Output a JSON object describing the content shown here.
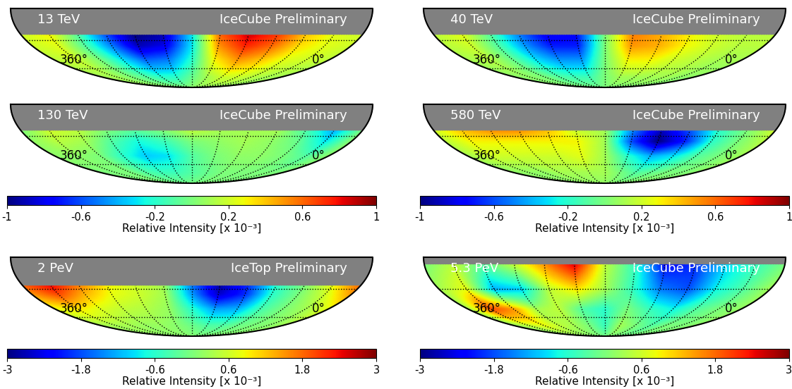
{
  "chart_data": [
    {
      "type": "heatmap",
      "title": "13 TeV",
      "subtitle": "IceCube Preliminary",
      "xlim": [
        360,
        0
      ],
      "ylim": [
        -90,
        0
      ],
      "xticks": [
        {
          "value": 360,
          "label": "360°"
        },
        {
          "value": 0,
          "label": "0°"
        }
      ],
      "meridians": [
        30,
        60,
        90,
        120,
        150,
        180,
        210,
        240,
        270,
        300,
        330
      ],
      "parallels": [
        -30,
        -60
      ],
      "ra": [
        0,
        30,
        60,
        90,
        120,
        150,
        180,
        210,
        240,
        270,
        300,
        330,
        360
      ],
      "dec": [
        -90,
        -70,
        -50,
        -35,
        -25
      ],
      "values": [
        [
          0.05,
          0.05,
          0.05,
          0.05,
          0.05,
          0.05,
          0.05,
          0.05,
          0.05,
          0.05,
          0.05,
          0.05,
          0.05
        ],
        [
          0.1,
          0.1,
          0.15,
          0.2,
          0.2,
          0.1,
          -0.05,
          -0.2,
          -0.2,
          -0.1,
          0.0,
          0.1,
          0.1
        ],
        [
          0.15,
          0.2,
          0.25,
          0.4,
          0.5,
          0.3,
          -0.2,
          -0.5,
          -0.55,
          -0.3,
          0.0,
          0.2,
          0.15
        ],
        [
          0.2,
          0.25,
          0.35,
          0.6,
          0.75,
          0.5,
          -0.3,
          -0.8,
          -0.9,
          -0.5,
          -0.1,
          0.25,
          0.2
        ],
        [
          0.2,
          0.25,
          0.4,
          0.7,
          0.85,
          0.6,
          -0.3,
          -0.9,
          -1.0,
          -0.6,
          -0.1,
          0.3,
          0.2
        ]
      ],
      "zlim": [
        -1,
        1
      ]
    },
    {
      "type": "heatmap",
      "title": "40 TeV",
      "subtitle": "IceCube Preliminary",
      "xlim": [
        360,
        0
      ],
      "ylim": [
        -90,
        0
      ],
      "xticks": [
        {
          "value": 360,
          "label": "360°"
        },
        {
          "value": 0,
          "label": "0°"
        }
      ],
      "meridians": [
        30,
        60,
        90,
        120,
        150,
        180,
        210,
        240,
        270,
        300,
        330
      ],
      "parallels": [
        -30,
        -60
      ],
      "ra": [
        0,
        30,
        60,
        90,
        120,
        150,
        180,
        210,
        240,
        270,
        300,
        330,
        360
      ],
      "dec": [
        -90,
        -70,
        -50,
        -35,
        -25
      ],
      "values": [
        [
          0.0,
          0.0,
          0.0,
          0.0,
          0.0,
          0.0,
          0.0,
          0.0,
          0.0,
          0.0,
          0.0,
          0.0,
          0.0
        ],
        [
          0.05,
          0.05,
          0.1,
          0.1,
          0.1,
          0.1,
          0.0,
          -0.15,
          -0.15,
          -0.1,
          0.0,
          0.05,
          0.05
        ],
        [
          0.1,
          0.1,
          0.15,
          0.2,
          0.3,
          0.3,
          0.0,
          -0.45,
          -0.45,
          -0.3,
          -0.05,
          0.15,
          0.1
        ],
        [
          0.15,
          0.15,
          0.2,
          0.3,
          0.45,
          0.5,
          0.0,
          -0.7,
          -0.7,
          -0.45,
          -0.1,
          0.2,
          0.15
        ],
        [
          0.15,
          0.15,
          0.2,
          0.3,
          0.45,
          0.55,
          0.0,
          -0.75,
          -0.8,
          -0.5,
          -0.1,
          0.25,
          0.15
        ]
      ],
      "zlim": [
        -1,
        1
      ]
    },
    {
      "type": "heatmap",
      "title": "130 TeV",
      "subtitle": "IceCube Preliminary",
      "xlim": [
        360,
        0
      ],
      "ylim": [
        -90,
        0
      ],
      "xticks": [
        {
          "value": 360,
          "label": "360°"
        },
        {
          "value": 0,
          "label": "0°"
        }
      ],
      "meridians": [
        30,
        60,
        90,
        120,
        150,
        180,
        210,
        240,
        270,
        300,
        330
      ],
      "parallels": [
        -30,
        -60
      ],
      "ra": [
        0,
        30,
        60,
        90,
        120,
        150,
        180,
        210,
        240,
        270,
        300,
        330,
        360
      ],
      "dec": [
        -90,
        -70,
        -50,
        -35,
        -25
      ],
      "values": [
        [
          0.0,
          0.0,
          0.0,
          0.0,
          0.0,
          0.0,
          0.0,
          0.0,
          0.0,
          0.0,
          0.0,
          0.0,
          0.0
        ],
        [
          0.0,
          0.0,
          0.0,
          0.0,
          0.0,
          -0.05,
          -0.1,
          -0.15,
          -0.15,
          -0.1,
          0.0,
          0.0,
          0.0
        ],
        [
          0.05,
          -0.1,
          0.0,
          0.05,
          0.05,
          0.0,
          -0.1,
          -0.3,
          -0.35,
          -0.2,
          0.0,
          0.05,
          0.05
        ],
        [
          0.05,
          -0.3,
          -0.05,
          0.05,
          0.1,
          0.05,
          0.0,
          -0.15,
          -0.25,
          -0.1,
          0.1,
          0.15,
          0.05
        ],
        [
          0.0,
          -0.4,
          -0.1,
          0.1,
          0.1,
          0.1,
          0.15,
          0.0,
          -0.1,
          0.0,
          0.15,
          0.2,
          0.0
        ]
      ],
      "zlim": [
        -1,
        1
      ],
      "zticks": [
        -1,
        -0.6,
        -0.2,
        0.2,
        0.6,
        1
      ],
      "colorbar_label": "Relative Intensity [x 10⁻³]"
    },
    {
      "type": "heatmap",
      "title": "580 TeV",
      "subtitle": "IceCube Preliminary",
      "xlim": [
        360,
        0
      ],
      "ylim": [
        -90,
        0
      ],
      "xticks": [
        {
          "value": 360,
          "label": "360°"
        },
        {
          "value": 0,
          "label": "0°"
        }
      ],
      "meridians": [
        30,
        60,
        90,
        120,
        150,
        180,
        210,
        240,
        270,
        300,
        330
      ],
      "parallels": [
        -30,
        -60
      ],
      "ra": [
        0,
        30,
        60,
        90,
        120,
        150,
        180,
        210,
        240,
        270,
        300,
        330,
        360
      ],
      "dec": [
        -90,
        -70,
        -50,
        -35,
        -25
      ],
      "values": [
        [
          0.05,
          0.05,
          0.05,
          0.05,
          0.05,
          0.05,
          0.05,
          0.05,
          0.05,
          0.05,
          0.05,
          0.05,
          0.05
        ],
        [
          0.05,
          0.0,
          0.0,
          -0.05,
          -0.1,
          0.0,
          0.1,
          0.1,
          0.1,
          0.1,
          0.05,
          0.05,
          0.05
        ],
        [
          0.1,
          0.0,
          -0.1,
          -0.3,
          -0.4,
          -0.2,
          0.1,
          0.25,
          0.2,
          0.2,
          0.2,
          0.2,
          0.1
        ],
        [
          0.15,
          0.0,
          -0.2,
          -0.7,
          -1.0,
          -0.6,
          0.1,
          0.3,
          0.3,
          0.3,
          0.3,
          0.3,
          0.15
        ],
        [
          0.2,
          0.0,
          -0.2,
          -0.6,
          -0.9,
          -0.5,
          0.1,
          0.2,
          0.4,
          0.5,
          0.5,
          0.4,
          0.2
        ]
      ],
      "zlim": [
        -1,
        1
      ],
      "zticks": [
        -1,
        -0.6,
        -0.2,
        0.2,
        0.6,
        1
      ],
      "colorbar_label": "Relative Intensity [x 10⁻³]"
    },
    {
      "type": "heatmap",
      "title": "2 PeV",
      "subtitle": "IceTop Preliminary",
      "xlim": [
        360,
        0
      ],
      "ylim": [
        -90,
        0
      ],
      "xticks": [
        {
          "value": 360,
          "label": "360°"
        },
        {
          "value": 0,
          "label": "0°"
        }
      ],
      "meridians": [
        30,
        60,
        90,
        120,
        150,
        180,
        210,
        240,
        270,
        300,
        330
      ],
      "parallels": [
        -30,
        -60
      ],
      "ra": [
        0,
        30,
        60,
        90,
        120,
        150,
        180,
        210,
        240,
        270,
        300,
        330,
        360
      ],
      "dec": [
        -90,
        -70,
        -50,
        -35,
        -27
      ],
      "values": [
        [
          0.1,
          0.1,
          0.1,
          0.1,
          0.1,
          0.1,
          0.1,
          0.1,
          0.1,
          0.1,
          0.1,
          0.1,
          0.1
        ],
        [
          0.3,
          0.1,
          0.0,
          -0.1,
          -0.3,
          -0.3,
          -0.1,
          0.1,
          0.2,
          0.2,
          0.3,
          0.3,
          0.3
        ],
        [
          0.8,
          0.3,
          0.0,
          -0.4,
          -1.2,
          -1.3,
          -0.6,
          0.2,
          0.4,
          0.5,
          0.7,
          1.0,
          0.8
        ],
        [
          1.5,
          0.6,
          0.0,
          -0.6,
          -2.0,
          -2.6,
          -1.3,
          0.3,
          0.6,
          0.8,
          1.3,
          2.0,
          1.5
        ],
        [
          1.8,
          0.8,
          0.0,
          -0.6,
          -2.0,
          -2.8,
          -1.5,
          0.3,
          0.6,
          0.9,
          1.6,
          2.4,
          1.8
        ]
      ],
      "zlim": [
        -3,
        3
      ],
      "zticks": [
        -3,
        -1.8,
        -0.6,
        0.6,
        1.8,
        3
      ],
      "colorbar_label": "Relative Intensity [x 10⁻³]"
    },
    {
      "type": "heatmap",
      "title": "5.3 PeV",
      "subtitle": "IceCube Preliminary",
      "xlim": [
        360,
        0
      ],
      "ylim": [
        -90,
        0
      ],
      "xticks": [
        {
          "value": 360,
          "label": "360°"
        },
        {
          "value": 0,
          "label": "0°"
        }
      ],
      "meridians": [
        30,
        60,
        90,
        120,
        150,
        180,
        210,
        240,
        270,
        300,
        330
      ],
      "parallels": [
        -30,
        -60
      ],
      "ra": [
        0,
        30,
        60,
        90,
        120,
        150,
        180,
        210,
        240,
        270,
        300,
        330,
        360
      ],
      "dec": [
        -90,
        -70,
        -50,
        -30,
        -7
      ],
      "values": [
        [
          0.0,
          0.0,
          0.0,
          0.0,
          0.0,
          0.0,
          0.0,
          0.0,
          0.0,
          0.0,
          0.0,
          0.0,
          0.0
        ],
        [
          0.2,
          0.0,
          0.0,
          -0.3,
          0.0,
          0.3,
          -0.5,
          0.0,
          0.3,
          0.5,
          0.8,
          0.5,
          0.2
        ],
        [
          0.2,
          0.0,
          -0.3,
          -0.8,
          -0.5,
          0.0,
          -0.6,
          -0.3,
          0.5,
          0.3,
          1.5,
          2.0,
          0.2
        ],
        [
          0.3,
          -0.3,
          -0.8,
          -1.8,
          -1.5,
          -0.5,
          0.3,
          1.0,
          0.5,
          -1.0,
          -1.2,
          0.8,
          0.3
        ],
        [
          0.0,
          -0.5,
          -1.0,
          -2.0,
          -2.2,
          -0.5,
          0.5,
          2.5,
          1.5,
          0.5,
          -0.3,
          0.5,
          0.0
        ]
      ],
      "zlim": [
        -3,
        3
      ],
      "zticks": [
        -3,
        -1.8,
        -0.6,
        0.6,
        1.8,
        3
      ],
      "colorbar_label": "Relative Intensity [x 10⁻³]"
    }
  ]
}
